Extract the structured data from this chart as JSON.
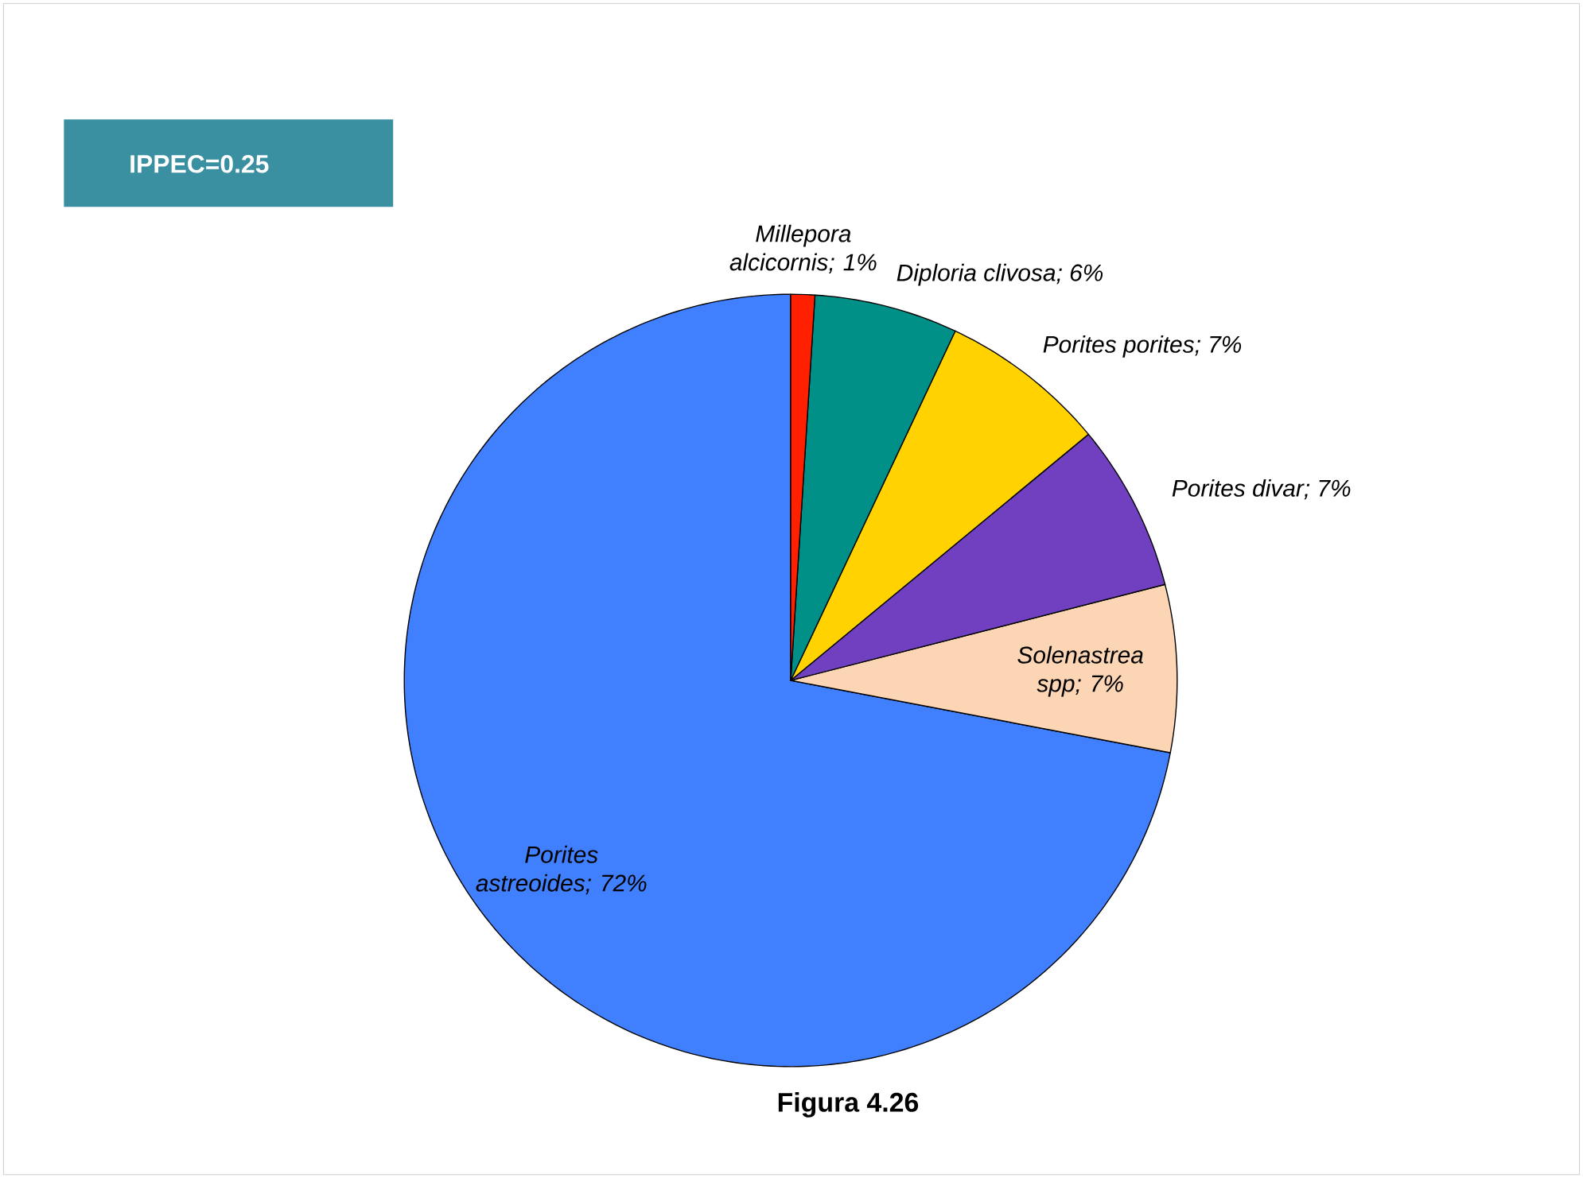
{
  "chart_data": {
    "type": "pie",
    "categories": [
      "Porites astreoides",
      "Solenastrea spp",
      "Porites divar",
      "Porites porites",
      "Diploria clivosa",
      "Millepora alcicornis"
    ],
    "values": [
      72,
      7,
      7,
      7,
      6,
      1
    ],
    "colors": [
      "#4080ff",
      "#fcd5b4",
      "#7040c0",
      "#ffd200",
      "#009088",
      "#ff2000"
    ],
    "value_labels": [
      "; 72%",
      "; 7%",
      "; 7%",
      "; 7%",
      "; 6%",
      "; 1%"
    ],
    "annotations": [
      "IPPEC=0.25",
      "Figura 4.26"
    ]
  }
}
